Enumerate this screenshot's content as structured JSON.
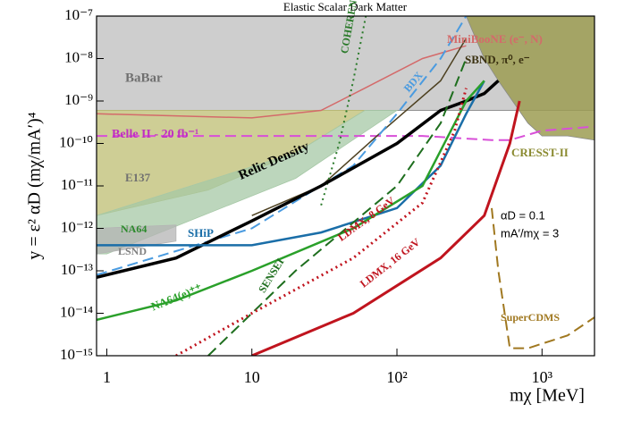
{
  "chart_data": {
    "type": "line",
    "title": "Elastic Scalar Dark Matter",
    "x_label": "mχ [MeV]",
    "y_label": "y = ε² αD (mχ/mA′)⁴",
    "xscale": "log",
    "yscale": "log",
    "xlim": [
      0.85,
      2300
    ],
    "ylim": [
      1e-15,
      1e-07
    ],
    "xticks": [
      1,
      10,
      {
        "value": 100,
        "label": "10²"
      },
      {
        "value": 1000,
        "label": "10³"
      }
    ],
    "yticks": [
      {
        "value": 1e-15,
        "label": "10⁻¹⁵"
      },
      {
        "value": 1e-14,
        "label": "10⁻¹⁴"
      },
      {
        "value": 1e-13,
        "label": "10⁻¹³"
      },
      {
        "value": 1e-12,
        "label": "10⁻¹²"
      },
      {
        "value": 1e-11,
        "label": "10⁻¹¹"
      },
      {
        "value": 1e-10,
        "label": "10⁻¹⁰"
      },
      {
        "value": 1e-09,
        "label": "10⁻⁹"
      },
      {
        "value": 1e-08,
        "label": "10⁻⁸"
      },
      {
        "value": 1e-07,
        "label": "10⁻⁷"
      }
    ],
    "annotations": [
      "αD = 0.1",
      "mA′/mχ = 3"
    ],
    "series": [
      {
        "name": "BaBar",
        "color": "#c6c6c6",
        "fill": "above",
        "x": [
          0.85,
          2300
        ],
        "values": [
          6e-10,
          6e-10
        ]
      },
      {
        "name": "E137",
        "color": "#bdbd72",
        "fill": "polygon",
        "x": [
          0.85,
          60,
          20,
          5,
          0.85
        ],
        "values": [
          6e-10,
          6e-10,
          6e-11,
          8e-12,
          2e-12
        ]
      },
      {
        "name": "NA64",
        "color": "#a6c8a6",
        "fill": "polygon",
        "x": [
          0.85,
          20,
          60,
          100,
          20,
          1,
          0.85
        ],
        "values": [
          2e-12,
          6e-11,
          6e-10,
          6e-10,
          1.5e-11,
          2.5e-13,
          2.5e-13
        ]
      },
      {
        "name": "LSND",
        "color": "#b4b4b4",
        "fill": "polygon",
        "x": [
          0.85,
          3,
          3,
          0.85
        ],
        "values": [
          2.5e-13,
          5e-13,
          1.2e-12,
          1e-12
        ]
      },
      {
        "name": "CRESST-II",
        "color": "#9c9c52",
        "fill": "above",
        "x": [
          300,
          400,
          500,
          800,
          1000,
          1500,
          2300
        ],
        "values": [
          1e-07,
          1e-08,
          3e-09,
          3e-10,
          1.5e-10,
          1.5e-10,
          1.2e-10
        ]
      },
      {
        "name": "Belle II - 20 fb⁻¹",
        "color": "#d84fd8",
        "linestyle": "dashed",
        "linewidth": 2,
        "x": [
          0.85,
          150,
          450,
          600,
          1000,
          2300
        ],
        "values": [
          1.5e-10,
          1.5e-10,
          1.2e-10,
          1.2e-10,
          2e-10,
          2.5e-10
        ]
      },
      {
        "name": "MiniBooNE (e⁻, N)",
        "color": "#d46a6a",
        "linestyle": "solid",
        "linewidth": 1.5,
        "x": [
          0.85,
          10,
          30,
          60,
          150,
          300
        ],
        "values": [
          5e-10,
          4e-10,
          6e-10,
          2e-09,
          1e-08,
          2e-08
        ]
      },
      {
        "name": "SBND, π⁰, e⁻",
        "color": "#4d4020",
        "linestyle": "solid",
        "linewidth": 1.5,
        "x": [
          10,
          30,
          80,
          200,
          300
        ],
        "values": [
          2e-12,
          1e-11,
          2e-10,
          3e-09,
          3e-08
        ]
      },
      {
        "name": "COHERENT",
        "color": "#2a7a2a",
        "linestyle": "dotted",
        "linewidth": 2,
        "x": [
          30,
          40,
          50,
          61
        ],
        "values": [
          3.5e-12,
          1e-10,
          3e-09,
          1e-07
        ]
      },
      {
        "name": "BDX",
        "color": "#4a9be0",
        "linestyle": "dashed",
        "linewidth": 2,
        "x": [
          0.85,
          10,
          50,
          100,
          200,
          300
        ],
        "values": [
          8e-14,
          1e-12,
          3e-11,
          5e-10,
          1e-08,
          1e-07
        ]
      },
      {
        "name": "Relic Density",
        "color": "#000000",
        "linestyle": "solid",
        "linewidth": 3.5,
        "x": [
          0.85,
          3,
          10,
          30,
          100,
          200,
          300,
          400,
          500
        ],
        "values": [
          7e-14,
          2e-13,
          1.5e-12,
          1e-11,
          1e-10,
          6e-10,
          1e-09,
          1.5e-09,
          3e-09
        ]
      },
      {
        "name": "SHiP",
        "color": "#1a6ea8",
        "linestyle": "solid",
        "linewidth": 2.5,
        "x": [
          0.85,
          10,
          30,
          100,
          200,
          300,
          400
        ],
        "values": [
          4e-13,
          4e-13,
          8e-13,
          3e-12,
          3e-11,
          5e-10,
          3e-09
        ]
      },
      {
        "name": "NA64(e)⁺⁺",
        "color": "#2aa02a",
        "linestyle": "solid",
        "linewidth": 2.5,
        "x": [
          0.85,
          3,
          10,
          50,
          150,
          300,
          400
        ],
        "values": [
          7e-15,
          2e-14,
          1e-13,
          1e-12,
          1e-11,
          1e-09,
          3e-09
        ]
      },
      {
        "name": "SENSEI",
        "color": "#1e6e1e",
        "linestyle": "dashed",
        "linewidth": 2,
        "x": [
          5,
          20,
          100,
          200,
          300
        ],
        "values": [
          1e-15,
          1e-13,
          1e-11,
          3e-10,
          1e-08
        ]
      },
      {
        "name": "LDMX, 8 GeV",
        "color": "#c0141e",
        "linestyle": "dotted",
        "linewidth": 3,
        "x": [
          3,
          10,
          50,
          150,
          250,
          300
        ],
        "values": [
          1e-15,
          1e-14,
          2e-13,
          4e-12,
          2e-10,
          2e-09
        ]
      },
      {
        "name": "LDMX, 16 GeV",
        "color": "#c0141e",
        "linestyle": "solid",
        "linewidth": 3,
        "x": [
          10,
          50,
          200,
          400,
          600,
          700
        ],
        "values": [
          1e-15,
          1e-14,
          2e-13,
          2e-12,
          1e-10,
          1e-09
        ]
      },
      {
        "name": "SuperCDMS",
        "color": "#a07820",
        "linestyle": "dashed",
        "linewidth": 2,
        "x": [
          450,
          500,
          600,
          800,
          1500,
          2300
        ],
        "values": [
          3e-12,
          1e-13,
          1.5e-15,
          1.5e-15,
          3e-15,
          8e-15
        ]
      }
    ]
  }
}
